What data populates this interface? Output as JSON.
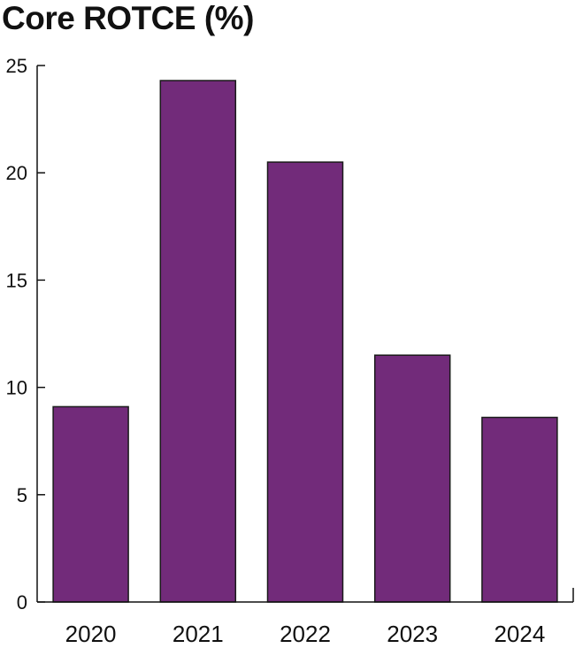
{
  "chart_data": {
    "type": "bar",
    "title": "Core ROTCE (%)",
    "categories": [
      "2020",
      "2021",
      "2022",
      "2023",
      "2024"
    ],
    "values": [
      9.1,
      24.3,
      20.5,
      11.5,
      8.6
    ],
    "ylim": [
      0,
      25
    ],
    "yticks": [
      0,
      5,
      10,
      15,
      20,
      25
    ],
    "xlabel": "",
    "ylabel": "",
    "grid": false,
    "legend": "none",
    "bar_color": "#722B7A",
    "bar_edge_color": "#1a1a1a",
    "axis_color": "#111111"
  }
}
